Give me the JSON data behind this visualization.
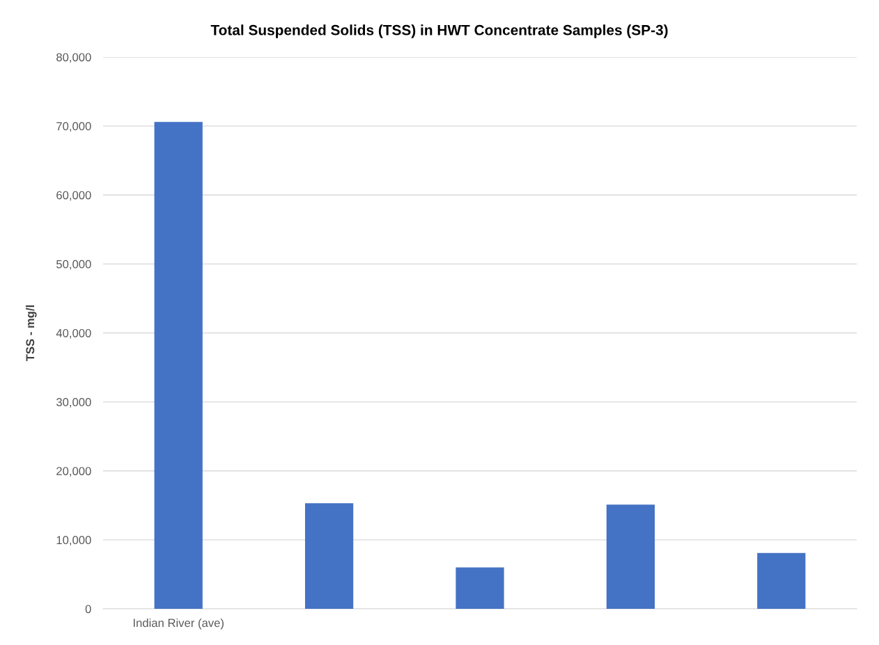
{
  "chart_data": {
    "type": "bar",
    "title": "Total Suspended Solids (TSS) in HWT Concentrate Samples (SP-3)",
    "ylabel": "TSS - mg/l",
    "categories": [
      "Indian River (ave)",
      null,
      null,
      null,
      null
    ],
    "values": [
      70600,
      15300,
      6000,
      15100,
      8100
    ],
    "color": "#4472c4",
    "ylim": [
      0,
      80000
    ],
    "yticks": [
      {
        "value": 0,
        "label": "0"
      },
      {
        "value": 10000,
        "label": "10,000"
      },
      {
        "value": 20000,
        "label": "20,000"
      },
      {
        "value": 30000,
        "label": "30,000"
      },
      {
        "value": 40000,
        "label": "40,000"
      },
      {
        "value": 50000,
        "label": "50,000"
      },
      {
        "value": 60000,
        "label": "60,000"
      },
      {
        "value": 70000,
        "label": "70,000"
      },
      {
        "value": 80000,
        "label": "80,000"
      }
    ],
    "grid": "y"
  }
}
